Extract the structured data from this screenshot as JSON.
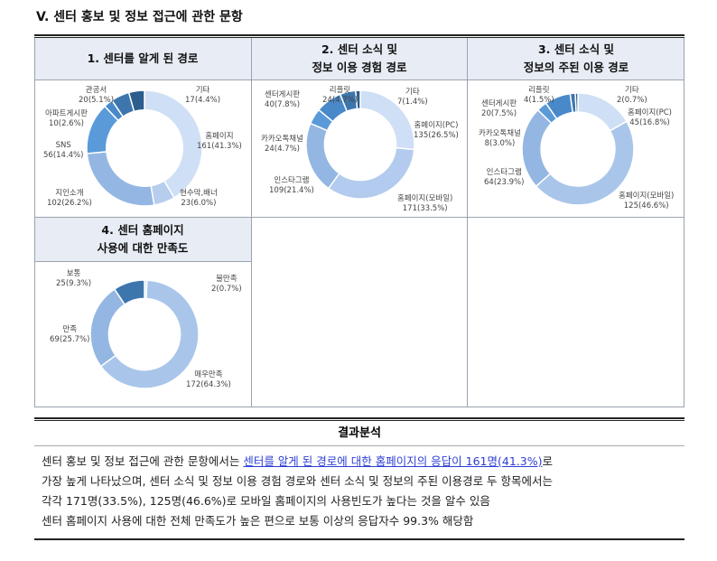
{
  "title": "V. 센터 홍보 및 정보 접근에 관한 문항",
  "chart_data": [
    {
      "type": "pie",
      "donut": true,
      "title_lines": [
        "1. 센터를 알게 된 경로"
      ],
      "slices": [
        {
          "name": "홈페이지",
          "value": 161,
          "label": "161(41.3%)",
          "color": "#cfdff5"
        },
        {
          "name": "현수막,배너",
          "value": 23,
          "label": "23(6.0%)",
          "color": "#b7cdee"
        },
        {
          "name": "지인소개",
          "value": 102,
          "label": "102(26.2%)",
          "color": "#94b6e2"
        },
        {
          "name": "SNS",
          "value": 56,
          "label": "56(14.4%)",
          "color": "#5a9ad9"
        },
        {
          "name": "아파트게시판",
          "value": 10,
          "label": "10(2.6%)",
          "color": "#4a89c9"
        },
        {
          "name": "관공서",
          "value": 20,
          "label": "20(5.1%)",
          "color": "#3d76ad"
        },
        {
          "name": "기타",
          "value": 17,
          "label": "17(4.4%)",
          "color": "#2c5d8c"
        }
      ]
    },
    {
      "type": "pie",
      "donut": true,
      "title_lines": [
        "2. 센터 소식 및",
        "정보 이용 경험 경로"
      ],
      "slices": [
        {
          "name": "홈페이지(PC)",
          "value": 135,
          "label": "135(26.5%)",
          "color": "#cfdff5"
        },
        {
          "name": "홈페이지(모바일)",
          "value": 171,
          "label": "171(33.5%)",
          "color": "#b2cbee"
        },
        {
          "name": "인스타그램",
          "value": 109,
          "label": "109(21.4%)",
          "color": "#94b6e2"
        },
        {
          "name": "카카오톡채널",
          "value": 24,
          "label": "24(4.7%)",
          "color": "#5a9ad9"
        },
        {
          "name": "센터게시판",
          "value": 40,
          "label": "40(7.8%)",
          "color": "#4a89c9"
        },
        {
          "name": "리플릿",
          "value": 24,
          "label": "24(4.7%)",
          "color": "#3d76ad"
        },
        {
          "name": "기타",
          "value": 7,
          "label": "7(1.4%)",
          "color": "#2c5d8c"
        }
      ]
    },
    {
      "type": "pie",
      "donut": true,
      "title_lines": [
        "3. 센터 소식 및",
        "정보의 주된 이용 경로"
      ],
      "slices": [
        {
          "name": "홈페이지(PC)",
          "value": 45,
          "label": "45(16.8%)",
          "color": "#cfdff5"
        },
        {
          "name": "홈페이지(모바일)",
          "value": 125,
          "label": "125(46.6%)",
          "color": "#a9c6ea"
        },
        {
          "name": "인스타그램",
          "value": 64,
          "label": "64(23.9%)",
          "color": "#94b6e2"
        },
        {
          "name": "카카오톡채널",
          "value": 8,
          "label": "8(3.0%)",
          "color": "#5a9ad9"
        },
        {
          "name": "센터게시판",
          "value": 20,
          "label": "20(7.5%)",
          "color": "#4a89c9"
        },
        {
          "name": "리플릿",
          "value": 4,
          "label": "4(1.5%)",
          "color": "#3d76ad"
        },
        {
          "name": "기타",
          "value": 2,
          "label": "2(0.7%)",
          "color": "#2c5d8c"
        }
      ]
    },
    {
      "type": "pie",
      "donut": true,
      "title_lines": [
        "4. 센터 홈페이지",
        "사용에 대한 만족도"
      ],
      "slices": [
        {
          "name": "불만족",
          "value": 2,
          "label": "2(0.7%)",
          "color": "#cfdff5"
        },
        {
          "name": "매우만족",
          "value": 172,
          "label": "172(64.3%)",
          "color": "#a9c6ea"
        },
        {
          "name": "만족",
          "value": 69,
          "label": "69(25.7%)",
          "color": "#94b6e2"
        },
        {
          "name": "보통",
          "value": 25,
          "label": "25(9.3%)",
          "color": "#3d76ad"
        }
      ]
    }
  ],
  "analysis": {
    "heading": "결과분석",
    "line1_pre": "센터 홍보 및 정보 접근에 관한 문항에서는 ",
    "line1_highlight": "센터를 알게 된 경로에 대한 홈페이지의 응답이 161명(41.3%)",
    "line1_post": "로",
    "line2": "가장 높게 나타났으며, 센터 소식 및 정보 이용 경험 경로와 센터 소식 및 정보의 주된 이용경로 두 항목에서는",
    "line3": "각각 171명(33.5%), 125명(46.6%)로 모바일 홈페이지의 사용빈도가 높다는 것을 알수 있음",
    "line4": "센터 홈페이지 사용에 대한 전체 만족도가 높은 편으로 보통 이상의 응답자수 99.3% 해당함"
  }
}
